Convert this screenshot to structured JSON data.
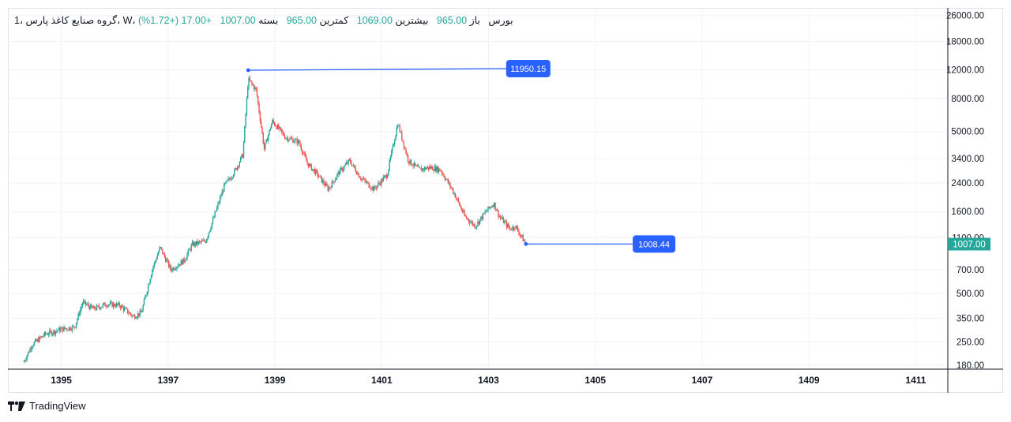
{
  "header": {
    "interval": "1",
    "symbol": "گروه صنایع کاغذ پارس",
    "timeframe": "W",
    "exchange": "بورس",
    "open_label": "باز",
    "open_value": "965.00",
    "high_label": "بیشترین",
    "high_value": "1069.00",
    "low_label": "کمترین",
    "low_value": "965.00",
    "close_label": "بسته",
    "close_value": "1007.00",
    "change": "+17.00",
    "change_pct": "(+1.72%)"
  },
  "footer": {
    "brand": "TradingView"
  },
  "colors": {
    "up": "#26a69a",
    "down": "#ef5350",
    "annotation": "#2962ff",
    "price_tag": "#26a69a"
  },
  "chart_data": {
    "type": "candlestick",
    "y_scale": "log",
    "ylim": [
      170,
      29000
    ],
    "xlim": [
      1394.0,
      1411.6
    ],
    "y_ticks": [
      26000,
      18000,
      12000,
      8000,
      5000,
      3400,
      2400,
      1600,
      1100,
      700,
      500,
      350,
      250,
      180
    ],
    "y_tick_labels": [
      "26000.00",
      "18000.00",
      "12000.00",
      "8000.00",
      "5000.00",
      "3400.00",
      "2400.00",
      "1600.00",
      "1100.00",
      "700.00",
      "500.00",
      "350.00",
      "250.00",
      "180.00"
    ],
    "x_ticks": [
      1395,
      1397,
      1399,
      1401,
      1403,
      1405,
      1407,
      1409,
      1411
    ],
    "x_tick_labels": [
      "1395",
      "1397",
      "1399",
      "1401",
      "1403",
      "1405",
      "1407",
      "1409",
      "1411"
    ],
    "last_price": 1007,
    "last_price_label": "1007.00",
    "price_path": [
      [
        1394.3,
        190
      ],
      [
        1394.45,
        240
      ],
      [
        1394.7,
        280
      ],
      [
        1395.0,
        300
      ],
      [
        1395.25,
        310
      ],
      [
        1395.4,
        440
      ],
      [
        1395.6,
        400
      ],
      [
        1395.85,
        430
      ],
      [
        1396.1,
        420
      ],
      [
        1396.35,
        360
      ],
      [
        1396.5,
        380
      ],
      [
        1396.7,
        700
      ],
      [
        1396.85,
        960
      ],
      [
        1397.05,
        700
      ],
      [
        1397.3,
        800
      ],
      [
        1397.45,
        1000
      ],
      [
        1397.7,
        1050
      ],
      [
        1397.85,
        1450
      ],
      [
        1398.05,
        2300
      ],
      [
        1398.25,
        2850
      ],
      [
        1398.4,
        3600
      ],
      [
        1398.5,
        10500
      ],
      [
        1398.65,
        9000
      ],
      [
        1398.8,
        3900
      ],
      [
        1398.95,
        5800
      ],
      [
        1399.2,
        4600
      ],
      [
        1399.45,
        4300
      ],
      [
        1399.6,
        3200
      ],
      [
        1399.8,
        2700
      ],
      [
        1400.0,
        2200
      ],
      [
        1400.2,
        2800
      ],
      [
        1400.4,
        3300
      ],
      [
        1400.6,
        2600
      ],
      [
        1400.85,
        2200
      ],
      [
        1401.1,
        2700
      ],
      [
        1401.2,
        3900
      ],
      [
        1401.3,
        5600
      ],
      [
        1401.5,
        3300
      ],
      [
        1401.7,
        2900
      ],
      [
        1401.9,
        3000
      ],
      [
        1402.1,
        2900
      ],
      [
        1402.35,
        2100
      ],
      [
        1402.55,
        1500
      ],
      [
        1402.75,
        1300
      ],
      [
        1402.95,
        1600
      ],
      [
        1403.1,
        1800
      ],
      [
        1403.2,
        1500
      ],
      [
        1403.4,
        1250
      ],
      [
        1403.5,
        1300
      ],
      [
        1403.7,
        1007
      ]
    ],
    "annotations": [
      {
        "label": "11950.15",
        "value": 11950.15,
        "x": 1398.5
      },
      {
        "label": "1008.44",
        "value": 1008.44,
        "x": 1403.7
      }
    ]
  }
}
